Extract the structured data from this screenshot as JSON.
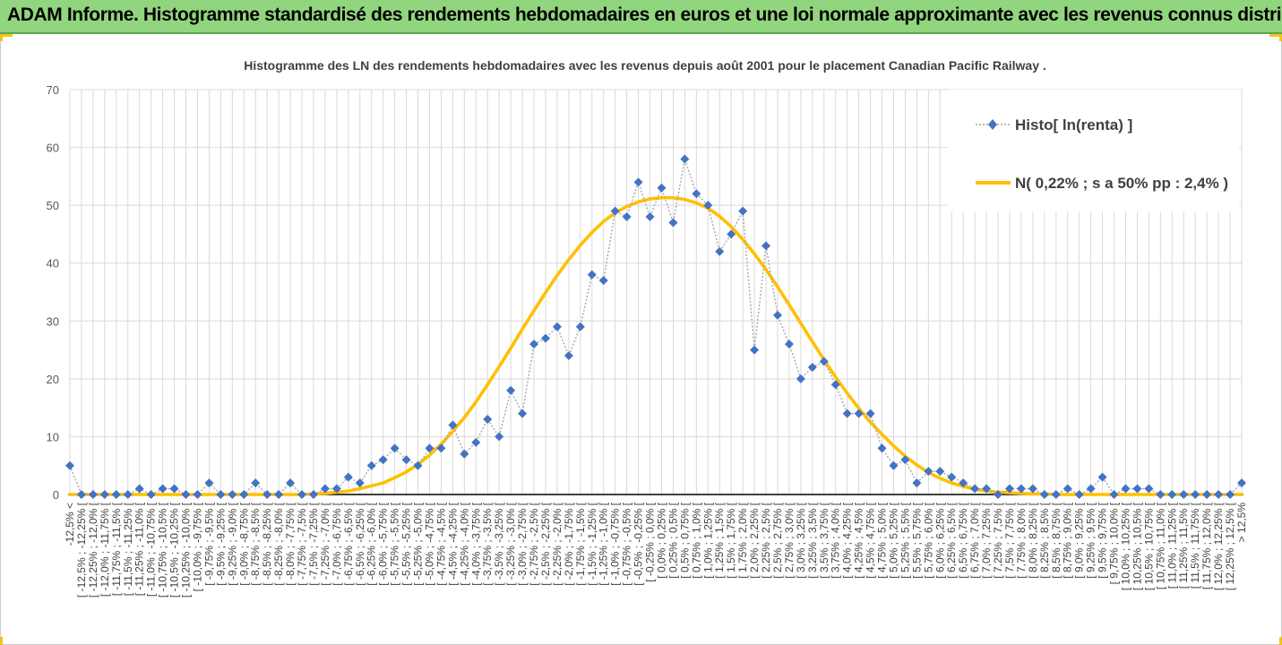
{
  "banner": {
    "title": "ADAM Informe. Histogramme standardisé des rendements hebdomadaires en euros et une loi normale approximante avec les revenus connus distribués"
  },
  "colors": {
    "banner_bg": "#92d57f",
    "histo_series": "#4472c4",
    "normal_series": "#ffc000",
    "grid": "#d9d9d9"
  },
  "chart_data": {
    "type": "line",
    "title": "Histogramme des LN des rendements hebdomadaires avec les revenus depuis août 2001 pour le placement Canadian Pacific Railway .",
    "xlabel": "",
    "ylabel": "",
    "ylim": [
      0,
      70
    ],
    "yticks": [
      0,
      10,
      20,
      30,
      40,
      50,
      60,
      70
    ],
    "grid": true,
    "legend_position": "top-right",
    "categories": [
      "-12,5% <",
      "[ -12,5% ; -12,25% [",
      "[ -12,25% ; -12,0% [",
      "[ -12,0% ; -11,75% [",
      "[ -11,75% ; -11,5% [",
      "[ -11,5% ; -11,25% [",
      "[ -11,25% ; -11,0% [",
      "[ -11,0% ; -10,75% [",
      "[ -10,75% ; -10,5% [",
      "[ -10,5% ; -10,25% [",
      "[ -10,25% ; -10,0% [",
      "[ -10,0% ; -9,75% [",
      "[ -9,75% ; -9,5% [",
      "[ -9,5% ; -9,25% [",
      "[ -9,25% ; -9,0% [",
      "[ -9,0% ; -8,75% [",
      "[ -8,75% ; -8,5% [",
      "[ -8,5% ; -8,25% [",
      "[ -8,25% ; -8,0% [",
      "[ -8,0% ; -7,75% [",
      "[ -7,75% ; -7,5% [",
      "[ -7,5% ; -7,25% [",
      "[ -7,25% ; -7,0% [",
      "[ -7,0% ; -6,75% [",
      "[ -6,75% ; -6,5% [",
      "[ -6,5% ; -6,25% [",
      "[ -6,25% ; -6,0% [",
      "[ -6,0% ; -5,75% [",
      "[ -5,75% ; -5,5% [",
      "[ -5,5% ; -5,25% [",
      "[ -5,25% ; -5,0% [",
      "[ -5,0% ; -4,75% [",
      "[ -4,75% ; -4,5% [",
      "[ -4,5% ; -4,25% [",
      "[ -4,25% ; -4,0% [",
      "[ -4,0% ; -3,75% [",
      "[ -3,75% ; -3,5% [",
      "[ -3,5% ; -3,25% [",
      "[ -3,25% ; -3,0% [",
      "[ -3,0% ; -2,75% [",
      "[ -2,75% ; -2,5% [",
      "[ -2,5% ; -2,25% [",
      "[ -2,25% ; -2,0% [",
      "[ -2,0% ; -1,75% [",
      "[ -1,75% ; -1,5% [",
      "[ -1,5% ; -1,25% [",
      "[ -1,25% ; -1,0% [",
      "[ -1,0% ; -0,75% [",
      "[ -0,75% ; -0,5% [",
      "[ -0,5% ; -0,25% [",
      "[ -0,25% ; 0,0% [",
      "[ 0,0% ; 0,25% [",
      "[ 0,25% ; 0,5% [",
      "[ 0,5% ; 0,75% [",
      "[ 0,75% ; 1,0% [",
      "[ 1,0% ; 1,25% [",
      "[ 1,25% ; 1,5% [",
      "[ 1,5% ; 1,75% [",
      "[ 1,75% ; 2,0% [",
      "[ 2,0% ; 2,25% [",
      "[ 2,25% ; 2,5% [",
      "[ 2,5% ; 2,75% [",
      "[ 2,75% ; 3,0% [",
      "[ 3,0% ; 3,25% [",
      "[ 3,25% ; 3,5% [",
      "[ 3,5% ; 3,75% [",
      "[ 3,75% ; 4,0% [",
      "[ 4,0% ; 4,25% [",
      "[ 4,25% ; 4,5% [",
      "[ 4,5% ; 4,75% [",
      "[ 4,75% ; 5,0% [",
      "[ 5,0% ; 5,25% [",
      "[ 5,25% ; 5,5% [",
      "[ 5,5% ; 5,75% [",
      "[ 5,75% ; 6,0% [",
      "[ 6,0% ; 6,25% [",
      "[ 6,25% ; 6,5% [",
      "[ 6,5% ; 6,75% [",
      "[ 6,75% ; 7,0% [",
      "[ 7,0% ; 7,25% [",
      "[ 7,25% ; 7,5% [",
      "[ 7,5% ; 7,75% [",
      "[ 7,75% ; 8,0% [",
      "[ 8,0% ; 8,25% [",
      "[ 8,25% ; 8,5% [",
      "[ 8,5% ; 8,75% [",
      "[ 8,75% ; 9,0% [",
      "[ 9,0% ; 9,25% [",
      "[ 9,25% ; 9,5% [",
      "[ 9,5% ; 9,75% [",
      "[ 9,75% ; 10,0% [",
      "[ 10,0% ; 10,25% [",
      "[ 10,25% ; 10,5% [",
      "[ 10,5% ; 10,75% [",
      "[ 10,75% ; 11,0% [",
      "[ 11,0% ; 11,25% [",
      "[ 11,25% ; 11,5% [",
      "[ 11,5% ; 11,75% [",
      "[ 11,75% ; 12,0% [",
      "[ 12,0% ; 12,25% [",
      "[ 12,25% ; 12,5% [",
      "> 12,5%"
    ],
    "series": [
      {
        "name": "Histo[ ln(renta) ]",
        "style": "dotted-line-diamond",
        "values": [
          5,
          0,
          0,
          0,
          0,
          0,
          1,
          0,
          1,
          1,
          0,
          0,
          2,
          0,
          0,
          0,
          2,
          0,
          0,
          2,
          0,
          0,
          1,
          1,
          3,
          2,
          5,
          6,
          8,
          6,
          5,
          8,
          8,
          12,
          7,
          9,
          13,
          10,
          18,
          14,
          26,
          27,
          29,
          24,
          29,
          38,
          37,
          49,
          48,
          54,
          48,
          53,
          47,
          58,
          52,
          50,
          42,
          45,
          49,
          25,
          43,
          31,
          26,
          20,
          22,
          23,
          19,
          14,
          14,
          14,
          8,
          5,
          6,
          2,
          4,
          4,
          3,
          2,
          1,
          1,
          0,
          1,
          1,
          1,
          0,
          0,
          1,
          0,
          1,
          3,
          0,
          1,
          1,
          1,
          0,
          0,
          0,
          0,
          0,
          0,
          0,
          2
        ]
      },
      {
        "name": "N( 0,22% ; s a 50% pp : 2,4% )",
        "style": "smooth-line",
        "values": [
          0,
          0,
          0,
          0,
          0,
          0,
          0,
          0,
          0,
          0,
          0,
          0,
          0,
          0,
          0,
          0,
          0,
          0,
          0,
          0,
          0,
          0.1,
          0.2,
          0.4,
          0.6,
          1.0,
          1.5,
          2.0,
          2.9,
          3.9,
          5.2,
          6.8,
          8.7,
          10.9,
          13.3,
          16.0,
          19.0,
          22.1,
          25.3,
          28.6,
          31.8,
          34.9,
          37.9,
          40.6,
          43.1,
          45.3,
          47.2,
          48.7,
          49.8,
          50.6,
          51.1,
          51.3,
          51.3,
          51.0,
          50.4,
          49.5,
          48.1,
          46.3,
          44.1,
          41.6,
          38.9,
          35.9,
          32.8,
          29.6,
          26.4,
          23.3,
          20.3,
          17.5,
          14.9,
          12.5,
          10.4,
          8.4,
          6.6,
          5.1,
          3.8,
          2.8,
          2.0,
          1.4,
          0.9,
          0.6,
          0.4,
          0.3,
          0.2,
          0.1,
          0.1,
          0,
          0,
          0,
          0,
          0,
          0,
          0,
          0,
          0,
          0,
          0,
          0,
          0,
          0,
          0,
          0,
          0
        ]
      }
    ]
  }
}
